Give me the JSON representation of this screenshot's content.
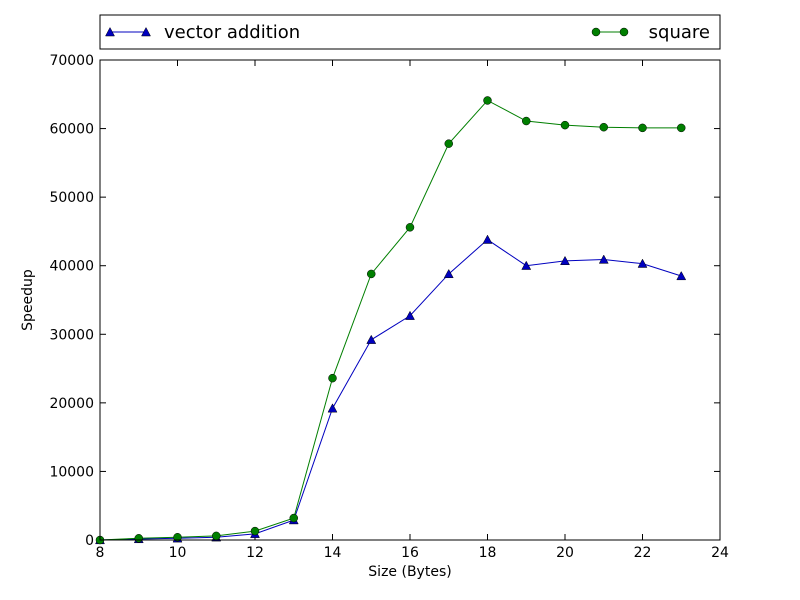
{
  "chart_data": {
    "type": "line",
    "xlabel": "Size (Bytes)",
    "ylabel": "Speedup",
    "xlim": [
      8,
      24
    ],
    "ylim": [
      0,
      70000
    ],
    "xticks": [
      8,
      10,
      12,
      14,
      16,
      18,
      20,
      22,
      24
    ],
    "yticks": [
      0,
      10000,
      20000,
      30000,
      40000,
      50000,
      60000,
      70000
    ],
    "grid": false,
    "legend_position": "top, above plot",
    "x": [
      8,
      9,
      10,
      11,
      12,
      13,
      14,
      15,
      16,
      17,
      18,
      19,
      20,
      21,
      22,
      23
    ],
    "series": [
      {
        "name": "vector addition",
        "marker": "triangle",
        "color": "#0000bf",
        "values": [
          0,
          150,
          250,
          400,
          900,
          2900,
          19200,
          29200,
          32700,
          38800,
          43800,
          40000,
          40700,
          40900,
          40300,
          38500
        ]
      },
      {
        "name": "square",
        "marker": "circle",
        "color": "#007f00",
        "values": [
          0,
          250,
          400,
          600,
          1300,
          3200,
          23600,
          38800,
          45600,
          57800,
          64100,
          61100,
          60500,
          60200,
          60100,
          60100
        ]
      }
    ]
  }
}
